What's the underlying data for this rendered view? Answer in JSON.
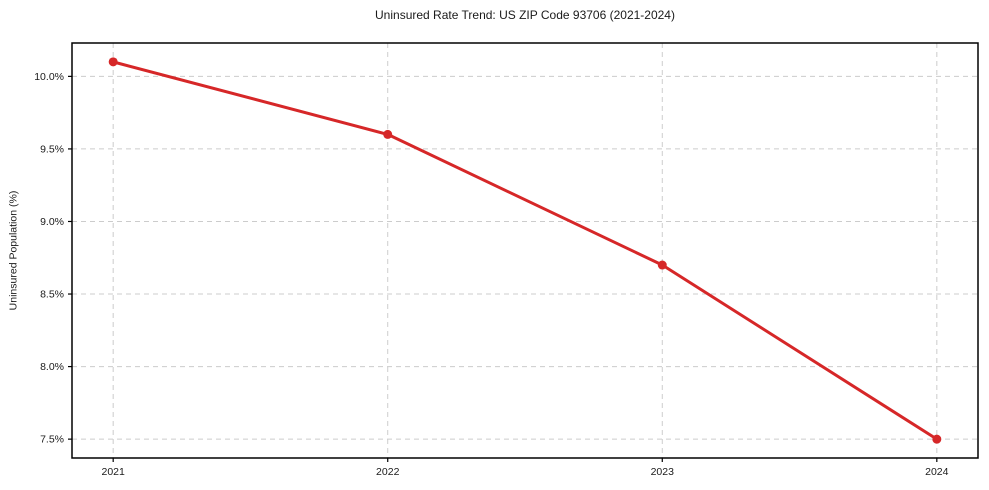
{
  "chart_data": {
    "type": "line",
    "title": "Uninsured Rate Trend: US ZIP Code 93706 (2021-2024)",
    "xlabel": "",
    "ylabel": "Uninsured Population (%)",
    "x": [
      2021,
      2022,
      2023,
      2024
    ],
    "series": [
      {
        "name": "Uninsured Population (%)",
        "values": [
          10.1,
          9.6,
          8.7,
          7.5
        ],
        "color": "#d62728",
        "marker": "circle",
        "line_width": 3,
        "marker_radius": 4.5
      }
    ],
    "x_tick_values": [
      2021,
      2022,
      2023,
      2024
    ],
    "x_tick_labels": [
      "2021",
      "2022",
      "2023",
      "2024"
    ],
    "y_tick_values": [
      7.5,
      8.0,
      8.5,
      9.0,
      9.5,
      10.0
    ],
    "y_tick_labels": [
      "7.5%",
      "8.0%",
      "8.5%",
      "9.0%",
      "9.5%",
      "10.0%"
    ],
    "xlim": [
      2020.85,
      2024.15
    ],
    "ylim": [
      7.37,
      10.23
    ],
    "grid": true,
    "grid_line_style": "dashed",
    "grid_color": "#cccccc",
    "axis_color": "#000000",
    "text_color": "#1a1a1a",
    "background_color": "#ffffff",
    "legend_position": "none"
  }
}
